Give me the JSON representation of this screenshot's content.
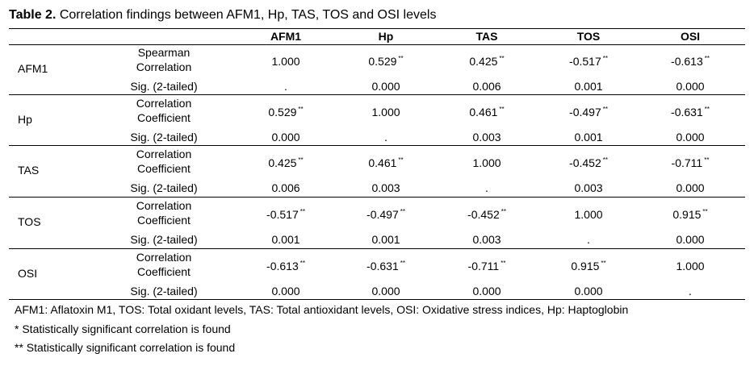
{
  "caption": {
    "label": "Table 2.",
    "text": "Correlation findings between AFM1, Hp, TAS, TOS and OSI levels"
  },
  "columns": [
    "AFM1",
    "Hp",
    "TAS",
    "TOS",
    "OSI"
  ],
  "groups": [
    {
      "label": "AFM1",
      "stat_line1": "Spearman",
      "stat_line2": "Correlation",
      "coef": [
        {
          "v": "1.000",
          "sig": ""
        },
        {
          "v": "0.529",
          "sig": "**"
        },
        {
          "v": "0.425",
          "sig": "**"
        },
        {
          "v": "-0.517",
          "sig": "**"
        },
        {
          "v": "-0.613",
          "sig": "**"
        }
      ],
      "p_label": "Sig. (2-tailed)",
      "p": [
        ".",
        "0.000",
        "0.006",
        "0.001",
        "0.000"
      ]
    },
    {
      "label": "Hp",
      "stat_line1": "Correlation",
      "stat_line2": "Coefficient",
      "coef": [
        {
          "v": "0.529",
          "sig": "**"
        },
        {
          "v": "1.000",
          "sig": ""
        },
        {
          "v": "0.461",
          "sig": "**"
        },
        {
          "v": "-0.497",
          "sig": "**"
        },
        {
          "v": "-0.631",
          "sig": "**"
        }
      ],
      "p_label": "Sig. (2-tailed)",
      "p": [
        "0.000",
        ".",
        "0.003",
        "0.001",
        "0.000"
      ]
    },
    {
      "label": "TAS",
      "stat_line1": "Correlation",
      "stat_line2": "Coefficient",
      "coef": [
        {
          "v": "0.425",
          "sig": "**"
        },
        {
          "v": "0.461",
          "sig": "**"
        },
        {
          "v": "1.000",
          "sig": ""
        },
        {
          "v": "-0.452",
          "sig": "**"
        },
        {
          "v": "-0.711",
          "sig": "**"
        }
      ],
      "p_label": "Sig. (2-tailed)",
      "p": [
        "0.006",
        "0.003",
        ".",
        "0.003",
        "0.000"
      ]
    },
    {
      "label": "TOS",
      "stat_line1": "Correlation",
      "stat_line2": "Coefficient",
      "coef": [
        {
          "v": "-0.517",
          "sig": "**"
        },
        {
          "v": "-0.497",
          "sig": "**"
        },
        {
          "v": "-0.452",
          "sig": "**"
        },
        {
          "v": "1.000",
          "sig": ""
        },
        {
          "v": "0.915",
          "sig": "**"
        }
      ],
      "p_label": "Sig. (2-tailed)",
      "p": [
        "0.001",
        "0.001",
        "0.003",
        ".",
        "0.000"
      ]
    },
    {
      "label": "OSI",
      "stat_line1": "Correlation",
      "stat_line2": "Coefficient",
      "coef": [
        {
          "v": "-0.613",
          "sig": "**"
        },
        {
          "v": "-0.631",
          "sig": "**"
        },
        {
          "v": "-0.711",
          "sig": "**"
        },
        {
          "v": "0.915",
          "sig": "**"
        },
        {
          "v": "1.000",
          "sig": ""
        }
      ],
      "p_label": "Sig. (2-tailed)",
      "p": [
        "0.000",
        "0.000",
        "0.000",
        "0.000",
        "."
      ]
    }
  ],
  "notes": [
    "AFM1: Aflatoxin M1, TOS:  Total oxidant levels, TAS: Total antioxidant levels,  OSI: Oxidative stress indices, Hp: Haptoglobin",
    "* Statistically significant correlation is found",
    "** Statistically significant correlation is found"
  ]
}
